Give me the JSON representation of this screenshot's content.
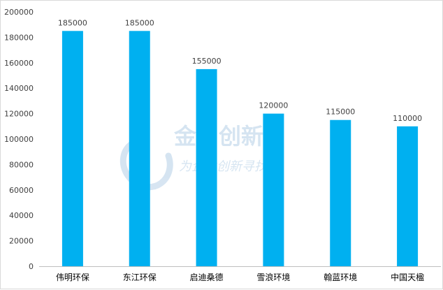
{
  "chart_data": {
    "type": "bar",
    "categories": [
      "伟明环保",
      "东江环保",
      "启迪桑德",
      "雪浪环境",
      "翰蓝环境",
      "中国天楹"
    ],
    "values": [
      185000,
      185000,
      155000,
      120000,
      115000,
      110000
    ],
    "data_labels": [
      "185000",
      "185000",
      "155000",
      "120000",
      "115000",
      "110000"
    ],
    "title": "",
    "xlabel": "",
    "ylabel": "",
    "ylim": [
      0,
      200000
    ],
    "yticks": [
      "0",
      "20000",
      "40000",
      "60000",
      "80000",
      "100000",
      "120000",
      "140000",
      "160000",
      "180000",
      "200000"
    ],
    "grid": false,
    "legend": "none",
    "bar_color": "#00b0f0"
  },
  "watermark": {
    "logo_text": "金智创新",
    "tagline": "为企业创新寻找"
  }
}
